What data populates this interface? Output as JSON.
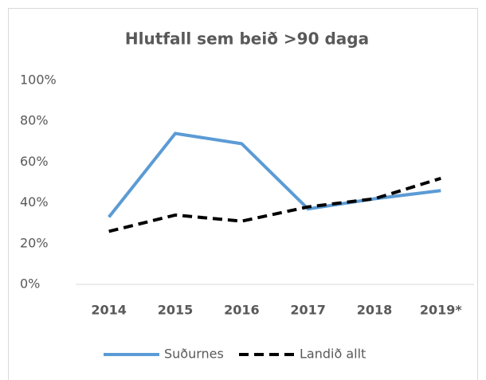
{
  "chart_data": {
    "type": "line",
    "title": "Hlutfall sem beið >90 daga",
    "categories": [
      "2014",
      "2015",
      "2016",
      "2017",
      "2018",
      "2019*"
    ],
    "series": [
      {
        "name": "Suðurnes",
        "color": "#5b9bd5",
        "dash": false,
        "values": [
          33,
          74,
          69,
          37,
          42,
          46
        ]
      },
      {
        "name": "Landið allt",
        "color": "#000000",
        "dash": true,
        "values": [
          26,
          34,
          31,
          38,
          42,
          52
        ]
      }
    ],
    "ylim": [
      0,
      100
    ],
    "yticks": [
      {
        "value": 0,
        "label": "0%"
      },
      {
        "value": 20,
        "label": "20%"
      },
      {
        "value": 40,
        "label": "40%"
      },
      {
        "value": 60,
        "label": "60%"
      },
      {
        "value": 80,
        "label": "80%"
      },
      {
        "value": 100,
        "label": "100%"
      }
    ],
    "grid": false,
    "legend": "bottom"
  }
}
